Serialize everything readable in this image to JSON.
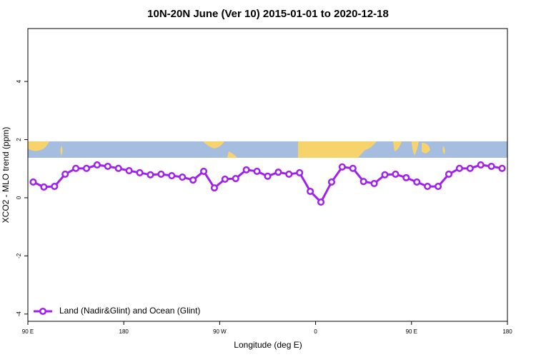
{
  "chart_data": {
    "type": "line",
    "title": "10N-20N June (Ver 10)   2015-01-01 to 2020-12-18",
    "x_label": "Longitude (deg E)",
    "y_label": "XCO2 - MLO trend (ppm)",
    "x": [
      95,
      105,
      115,
      125,
      135,
      145,
      155,
      165,
      175,
      185,
      195,
      205,
      215,
      225,
      235,
      245,
      255,
      265,
      275,
      285,
      295,
      305,
      315,
      325,
      335,
      345,
      355,
      365,
      375,
      385,
      395,
      405,
      415,
      425,
      435,
      445,
      455,
      465,
      475,
      485,
      495,
      505,
      515,
      525,
      535
    ],
    "series": [
      {
        "name": "Land (Nadir&Glint) and Ocean (Glint)",
        "color": "#a020f0",
        "values": [
          0.54,
          0.37,
          0.39,
          0.81,
          1.01,
          1.01,
          1.13,
          1.08,
          1.01,
          0.93,
          0.86,
          0.79,
          0.81,
          0.76,
          0.71,
          0.61,
          0.91,
          0.34,
          0.64,
          0.66,
          0.96,
          0.91,
          0.74,
          0.88,
          0.81,
          0.86,
          0.22,
          -0.15,
          0.54,
          1.06,
          1.01,
          0.56,
          0.49,
          0.79,
          0.81,
          0.69,
          0.54,
          0.39,
          0.39,
          0.81,
          1.01,
          1.01,
          1.13,
          1.08,
          1.01
        ]
      }
    ],
    "xlim": [
      90,
      540
    ],
    "xticks": [
      {
        "value": 90,
        "label": "90 E"
      },
      180,
      {
        "value": 270,
        "label": "90 W"
      },
      {
        "value": 360,
        "label": "0"
      },
      {
        "value": 450,
        "label": "90 E"
      },
      {
        "value": 540,
        "label": "180"
      }
    ],
    "ylim": [
      -4.25,
      5.82
    ],
    "yticks": [
      -4,
      -2,
      0,
      2,
      4
    ],
    "legend": "bottom left"
  }
}
